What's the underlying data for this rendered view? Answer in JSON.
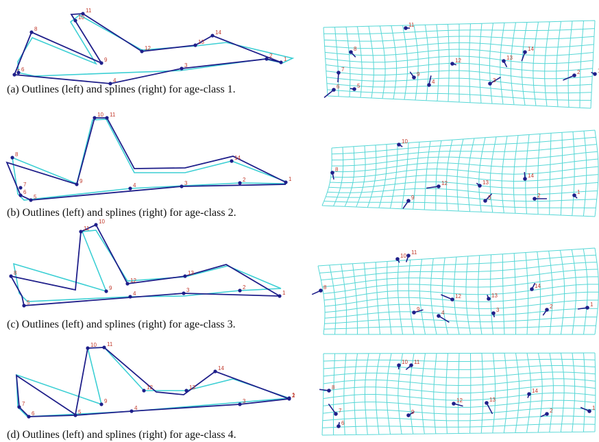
{
  "colors": {
    "outline_dark": "#1f1f8a",
    "outline_light": "#3ccfd4",
    "grid": "#56d7d6",
    "landmark": "#1f1f8a",
    "label": "#c0392b"
  },
  "panels": [
    {
      "caption": "(a) Outlines (left) and splines  (right)  for age-class  1.",
      "labels": [
        "11",
        "10",
        "8",
        "9",
        "12",
        "13",
        "14",
        "5",
        "6",
        "4",
        "3",
        "2",
        "1"
      ],
      "grid_labels": [
        "11",
        "8",
        "7",
        "6",
        "5",
        "9",
        "4",
        "3",
        "12",
        "13",
        "14",
        "2",
        "1"
      ]
    },
    {
      "caption": "(b) Outlines (left) and splines  (right)  for age-class  2.",
      "labels": [
        "10",
        "11",
        "8",
        "7",
        "9",
        "5",
        "6",
        "4",
        "3",
        "2",
        "1",
        "14"
      ],
      "grid_labels": [
        "10",
        "8",
        "9",
        "12",
        "13",
        "14",
        "3",
        "2",
        "1"
      ]
    },
    {
      "caption": "(c) Outlines (left) and splines  (right)  for age-class  3.",
      "labels": [
        "11",
        "10",
        "8",
        "9",
        "12",
        "13",
        "5",
        "4",
        "3",
        "2",
        "1"
      ],
      "grid_labels": [
        "10",
        "11",
        "8",
        "12",
        "13",
        "14",
        "9",
        "4",
        "3",
        "2",
        "1"
      ]
    },
    {
      "caption": "(d) Outlines (left) and splines  (right)  for age-class  4.",
      "labels": [
        "10",
        "11",
        "7",
        "9",
        "12",
        "13",
        "14",
        "6",
        "5",
        "4",
        "3",
        "2",
        "1"
      ],
      "grid_labels": [
        "10",
        "11",
        "8",
        "7",
        "6",
        "9",
        "12",
        "13",
        "14",
        "2",
        "1"
      ]
    }
  ]
}
